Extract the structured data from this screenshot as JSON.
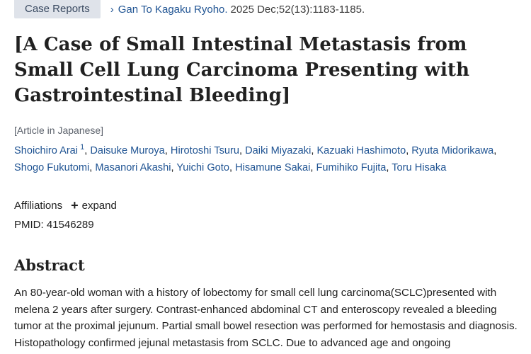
{
  "article_type_badge": "Case Reports",
  "citation": {
    "journal": "Gan To Kagaku Ryoho.",
    "details": "2025 Dec;52(13):1183-1185."
  },
  "title": "[A Case of Small Intestinal Metastasis from Small Cell Lung Carcinoma Presenting with Gastrointestinal Bleeding]",
  "language_note": "[Article in Japanese]",
  "authors": [
    {
      "name": "Shoichiro Arai",
      "sup": "1"
    },
    {
      "name": "Daisuke Muroya"
    },
    {
      "name": "Hirotoshi Tsuru"
    },
    {
      "name": "Daiki Miyazaki"
    },
    {
      "name": "Kazuaki Hashimoto"
    },
    {
      "name": "Ryuta Midorikawa"
    },
    {
      "name": "Shogo Fukutomi"
    },
    {
      "name": "Masanori Akashi"
    },
    {
      "name": "Yuichi Goto"
    },
    {
      "name": "Hisamune Sakai"
    },
    {
      "name": "Fumihiko Fujita"
    },
    {
      "name": "Toru Hisaka"
    }
  ],
  "affiliations": {
    "label": "Affiliations",
    "expand_label": "expand"
  },
  "pmid": "PMID: 41546289",
  "abstract": {
    "heading": "Abstract",
    "text": "An 80-year-old woman with a history of lobectomy for small cell lung carcinoma(SCLC)presented with melena 2 years after surgery. Contrast-enhanced abdominal CT and enteroscopy revealed a bleeding tumor at the proximal jejunum. Partial small bowel resection was performed for hemostasis and diagnosis. Histopathology confirmed jejunal metastasis from SCLC. Due to advanced age and ongoing"
  }
}
